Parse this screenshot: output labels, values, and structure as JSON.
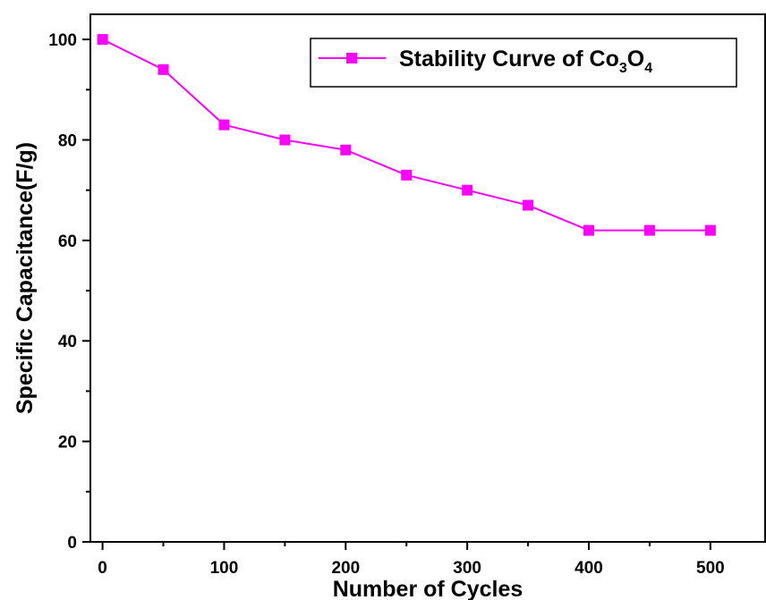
{
  "chart_data": {
    "type": "line",
    "x": [
      0,
      50,
      100,
      150,
      200,
      250,
      300,
      350,
      400,
      450,
      500
    ],
    "series": [
      {
        "name": "Stability Curve of Co3O4",
        "name_parts": {
          "base": "Stability Curve of Co",
          "sub1": "3",
          "mid": "O",
          "sub2": "4"
        },
        "values": [
          100,
          94,
          83,
          80,
          78,
          73,
          70,
          67,
          62,
          62,
          62
        ],
        "color": "#ff00ff",
        "marker": "square"
      }
    ],
    "xlabel": "Number of Cycles",
    "ylabel": "Specific Capacitance(F/g)",
    "xlim": [
      -10,
      545
    ],
    "ylim": [
      0,
      105
    ],
    "xticks": [
      0,
      100,
      200,
      300,
      400,
      500
    ],
    "xticks_minor": [
      50,
      150,
      250,
      350,
      450
    ],
    "yticks": [
      0,
      20,
      40,
      60,
      80,
      100
    ],
    "yticks_minor": [
      10,
      30,
      50,
      70,
      90
    ],
    "legend_position": "top-right",
    "grid": false
  }
}
